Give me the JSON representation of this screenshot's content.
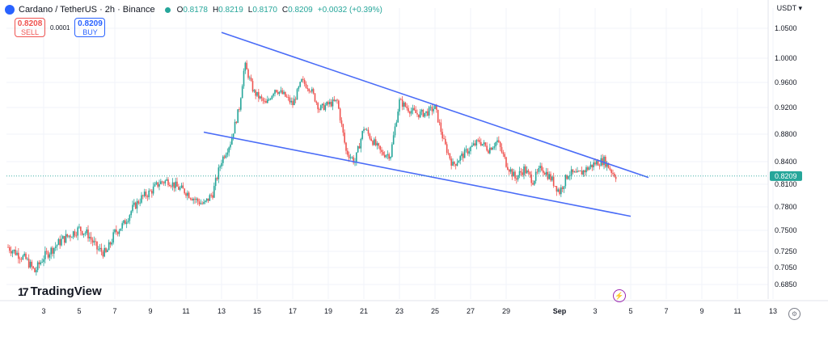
{
  "header": {
    "symbol": "Cardano / TetherUS · 2h · Binance",
    "open_label": "O",
    "open": "0.8178",
    "high_label": "H",
    "high": "0.8219",
    "low_label": "L",
    "low": "0.8170",
    "close_label": "C",
    "close": "0.8209",
    "change": "+0.0032 (+0.39%)"
  },
  "trade": {
    "sell_price": "0.8208",
    "sell_label": "SELL",
    "spread": "0.0001",
    "buy_price": "0.8209",
    "buy_label": "BUY"
  },
  "currency": "USDT",
  "brand": "TradingView",
  "colors": {
    "up": "#26a69a",
    "down": "#ef5350",
    "trendline": "#4a6cf7",
    "price_tag": "#26a69a"
  },
  "chart_data": {
    "type": "candlestick",
    "x_tick_labels": [
      "3",
      "5",
      "7",
      "9",
      "11",
      "13",
      "15",
      "17",
      "19",
      "21",
      "23",
      "25",
      "27",
      "29",
      "Sep",
      "3",
      "5",
      "7",
      "9",
      "11",
      "13"
    ],
    "y_tick_labels": [
      "1.0500",
      "1.0000",
      "0.9600",
      "0.9200",
      "0.8800",
      "0.8400",
      "0.8100",
      "0.7800",
      "0.7500",
      "0.7250",
      "0.7050",
      "0.6850"
    ],
    "current_price": "0.8209",
    "ylim": [
      0.68,
      1.07
    ],
    "grid": true,
    "trendlines": [
      {
        "name": "upper",
        "from": [
          "Aug 13",
          1.043
        ],
        "to": [
          "Sep 6",
          0.819
        ]
      },
      {
        "name": "lower",
        "from": [
          "Aug 12",
          0.883
        ],
        "to": [
          "Sep 5",
          0.768
        ]
      }
    ],
    "price_path": [
      [
        "Aug 1",
        0.73
      ],
      [
        "Aug 2",
        0.715
      ],
      [
        "Aug 2.5",
        0.7
      ],
      [
        "Aug 3",
        0.718
      ],
      [
        "Aug 4",
        0.738
      ],
      [
        "Aug 5",
        0.752
      ],
      [
        "Aug 5.5",
        0.745
      ],
      [
        "Aug 6",
        0.728
      ],
      [
        "Aug 6.5",
        0.722
      ],
      [
        "Aug 7",
        0.747
      ],
      [
        "Aug 7.5",
        0.758
      ],
      [
        "Aug 8",
        0.778
      ],
      [
        "Aug 8.5",
        0.792
      ],
      [
        "Aug 9",
        0.8
      ],
      [
        "Aug 9.5",
        0.812
      ],
      [
        "Aug 10",
        0.815
      ],
      [
        "Aug 10.5",
        0.806
      ],
      [
        "Aug 11",
        0.8
      ],
      [
        "Aug 11.5",
        0.79
      ],
      [
        "Aug 12",
        0.783
      ],
      [
        "Aug 12.5",
        0.798
      ],
      [
        "Aug 13",
        0.842
      ],
      [
        "Aug 13.5",
        0.868
      ],
      [
        "Aug 14",
        0.92
      ],
      [
        "Aug 14.3",
        0.99
      ],
      [
        "Aug 14.8",
        0.945
      ],
      [
        "Aug 15.5",
        0.925
      ],
      [
        "Aug 16",
        0.95
      ],
      [
        "Aug 16.5",
        0.94
      ],
      [
        "Aug 17",
        0.925
      ],
      [
        "Aug 17.5",
        0.962
      ],
      [
        "Aug 18",
        0.95
      ],
      [
        "Aug 18.5",
        0.918
      ],
      [
        "Aug 19",
        0.925
      ],
      [
        "Aug 19.5",
        0.93
      ],
      [
        "Aug 20",
        0.855
      ],
      [
        "Aug 20.5",
        0.84
      ],
      [
        "Aug 21",
        0.89
      ],
      [
        "Aug 21.5",
        0.87
      ],
      [
        "Aug 22",
        0.852
      ],
      [
        "Aug 22.5",
        0.85
      ],
      [
        "Aug 23",
        0.93
      ],
      [
        "Aug 23.5",
        0.918
      ],
      [
        "Aug 24",
        0.91
      ],
      [
        "Aug 24.5",
        0.912
      ],
      [
        "Aug 25",
        0.92
      ],
      [
        "Aug 25.5",
        0.868
      ],
      [
        "Aug 26",
        0.835
      ],
      [
        "Aug 26.5",
        0.848
      ],
      [
        "Aug 27",
        0.86
      ],
      [
        "Aug 27.5",
        0.87
      ],
      [
        "Aug 28",
        0.858
      ],
      [
        "Aug 28.5",
        0.87
      ],
      [
        "Aug 29",
        0.838
      ],
      [
        "Aug 29.5",
        0.818
      ],
      [
        "Aug 30",
        0.83
      ],
      [
        "Aug 30.5",
        0.815
      ],
      [
        "Aug 31",
        0.832
      ],
      [
        "Aug 31.5",
        0.818
      ],
      [
        "Sep 1",
        0.8
      ],
      [
        "Sep 1.5",
        0.825
      ],
      [
        "Sep 2",
        0.822
      ],
      [
        "Sep 2.5",
        0.83
      ],
      [
        "Sep 3",
        0.838
      ],
      [
        "Sep 3.5",
        0.842
      ],
      [
        "Sep 4",
        0.825
      ],
      [
        "Sep 4.2",
        0.8209
      ]
    ]
  }
}
